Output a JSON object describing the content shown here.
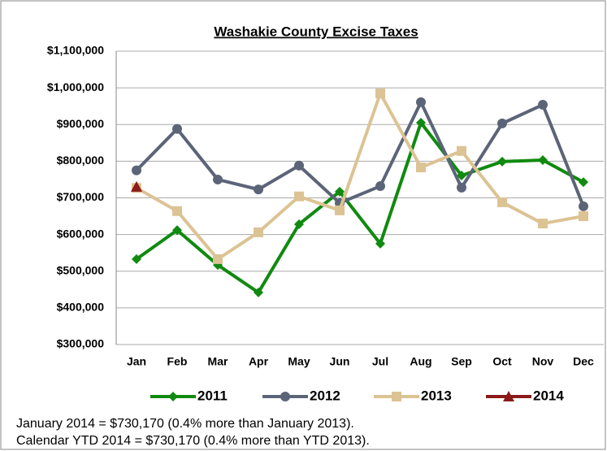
{
  "chart_data": {
    "type": "line",
    "title": "Washakie County Excise Taxes",
    "categories": [
      "Jan",
      "Feb",
      "Mar",
      "Apr",
      "May",
      "Jun",
      "Jul",
      "Aug",
      "Sep",
      "Oct",
      "Nov",
      "Dec"
    ],
    "series": [
      {
        "name": "2011",
        "color": "#108a10",
        "marker": "diamond",
        "values": [
          533000,
          612000,
          517000,
          442000,
          628000,
          717000,
          575000,
          905000,
          761000,
          799000,
          803000,
          743000
        ]
      },
      {
        "name": "2012",
        "color": "#5c6478",
        "marker": "circle",
        "values": [
          775000,
          888000,
          750000,
          723000,
          788000,
          686000,
          732000,
          961000,
          728000,
          903000,
          954000,
          677000
        ]
      },
      {
        "name": "2013",
        "color": "#dcc394",
        "marker": "square",
        "values": [
          727000,
          664000,
          533000,
          606000,
          704000,
          666000,
          985000,
          783000,
          828000,
          688000,
          630000,
          650000
        ]
      },
      {
        "name": "2014",
        "color": "#8b1a1a",
        "marker": "triangle",
        "values": [
          730170,
          null,
          null,
          null,
          null,
          null,
          null,
          null,
          null,
          null,
          null,
          null
        ]
      }
    ],
    "ylim": [
      300000,
      1100000
    ],
    "yticks": [
      {
        "value": 300000,
        "label": "$300,000"
      },
      {
        "value": 400000,
        "label": "$400,000"
      },
      {
        "value": 500000,
        "label": "$500,000"
      },
      {
        "value": 600000,
        "label": "$600,000"
      },
      {
        "value": 700000,
        "label": "$700,000"
      },
      {
        "value": 800000,
        "label": "$800,000"
      },
      {
        "value": 900000,
        "label": "$900,000"
      },
      {
        "value": 1000000,
        "label": "$1,000,000"
      },
      {
        "value": 1100000,
        "label": "$1,100,000"
      }
    ],
    "grid": true,
    "legend": "bottom"
  },
  "notes": [
    "January 2014 = $730,170 (0.4% more than January 2013).",
    "Calendar YTD 2014 = $730,170 (0.4% more than YTD 2013)."
  ]
}
